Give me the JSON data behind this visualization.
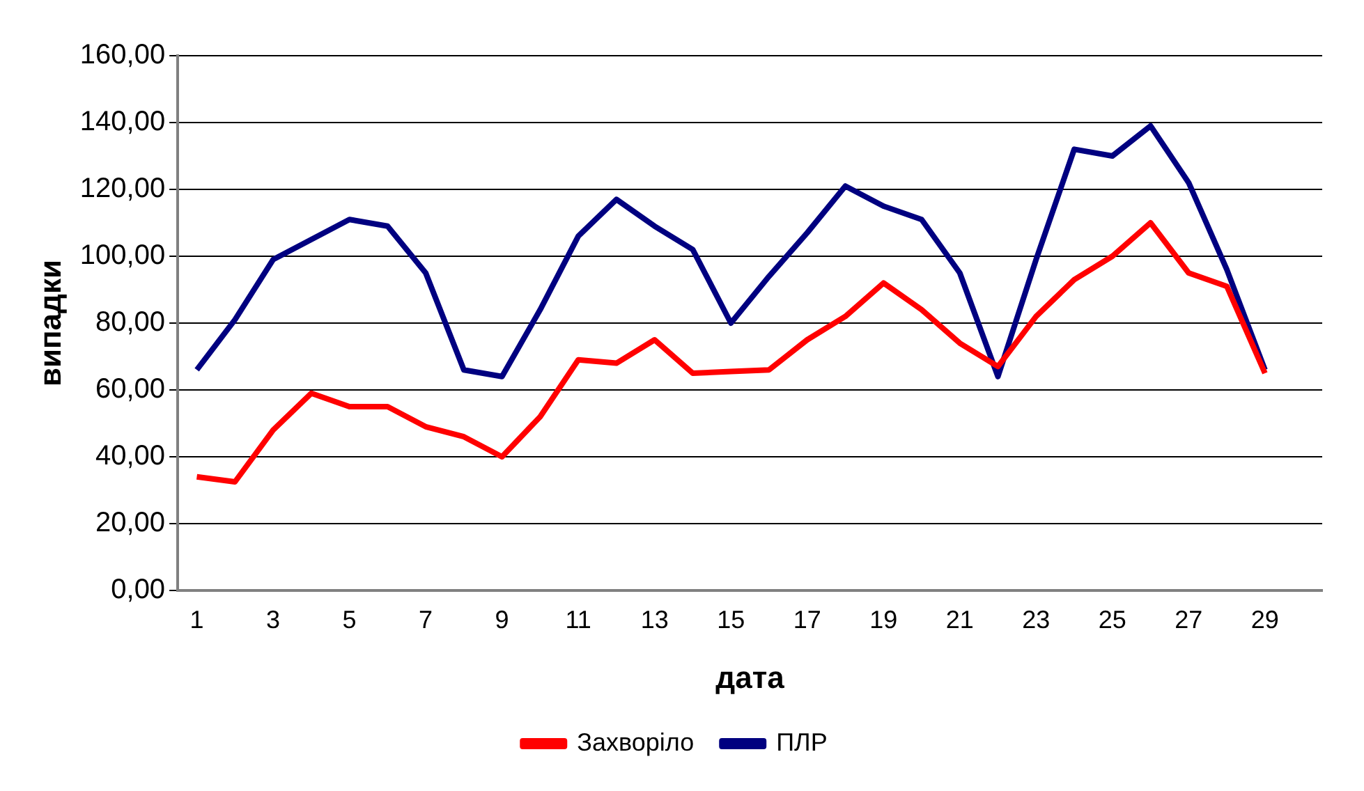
{
  "chart_data": {
    "type": "line",
    "xlabel": "дата",
    "ylabel": "випадки",
    "x": [
      1,
      2,
      3,
      4,
      5,
      6,
      7,
      8,
      9,
      10,
      11,
      12,
      13,
      14,
      15,
      16,
      17,
      18,
      19,
      20,
      21,
      22,
      23,
      24,
      25,
      26,
      27,
      28,
      29
    ],
    "xlim": [
      0.5,
      30.5
    ],
    "xticks": [
      1,
      3,
      5,
      7,
      9,
      11,
      13,
      15,
      17,
      19,
      21,
      23,
      25,
      27,
      29
    ],
    "series": [
      {
        "name": "Захворіло",
        "color": "#ff0000",
        "values": [
          34,
          32.5,
          48,
          59,
          55,
          55,
          49,
          46,
          40,
          52,
          69,
          68,
          75,
          65,
          65.5,
          66,
          75,
          82,
          92,
          84,
          74,
          67,
          82,
          93,
          100,
          110,
          95,
          91,
          65
        ]
      },
      {
        "name": "ПЛР",
        "color": "#000080",
        "values": [
          66,
          81,
          99,
          105,
          111,
          109,
          95,
          66,
          64,
          84,
          106,
          117,
          109,
          102,
          80,
          94,
          107,
          121,
          115,
          111,
          95,
          64,
          99,
          132,
          130,
          139,
          122,
          96,
          66
        ]
      }
    ],
    "ylim": [
      0,
      160
    ],
    "yticks": [
      {
        "value": 0,
        "label": "0,00"
      },
      {
        "value": 20,
        "label": "20,00"
      },
      {
        "value": 40,
        "label": "40,00"
      },
      {
        "value": 60,
        "label": "60,00"
      },
      {
        "value": 80,
        "label": "80,00"
      },
      {
        "value": 100,
        "label": "100,00"
      },
      {
        "value": 120,
        "label": "120,00"
      },
      {
        "value": 140,
        "label": "140,00"
      },
      {
        "value": 160,
        "label": "160,00"
      }
    ],
    "grid": "y",
    "legend": "bottom",
    "line_style": "solid"
  }
}
